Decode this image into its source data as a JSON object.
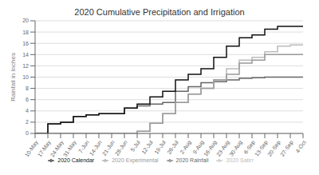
{
  "chart_data": {
    "type": "step",
    "title": "2020 Cumulative Precipitation and Irrigation",
    "ylabel": "Rainfall in Inches",
    "categories": [
      "10-May",
      "17-May",
      "24-May",
      "31-May",
      "7-Jun",
      "14-Jun",
      "21-Jun",
      "28-Jun",
      "5-Jul",
      "12-Jul",
      "19-Jul",
      "26-Jul",
      "2-Aug",
      "9-Aug",
      "16-Aug",
      "23-Aug",
      "30-Aug",
      "6-Sep",
      "13-Sep",
      "20-Sep",
      "27-Sep",
      "4-Oct"
    ],
    "series": [
      {
        "name": "2020 Rainfall",
        "color": "#666666",
        "values": [
          0,
          1.7,
          2.0,
          3.0,
          3.3,
          3.5,
          3.5,
          4.5,
          4.9,
          5.2,
          5.5,
          7.5,
          8.3,
          9.0,
          9.2,
          9.5,
          9.8,
          9.9,
          10.0,
          10.0,
          10.0,
          10.0
        ]
      },
      {
        "name": "2020 Satirr",
        "color": "#bbbbbb",
        "values": [
          0,
          0,
          0,
          0,
          0,
          0,
          0,
          0,
          0.4,
          1.8,
          3.5,
          5.5,
          7.0,
          8.0,
          9.5,
          11.5,
          13.0,
          13.5,
          14.5,
          15.5,
          15.7,
          15.7
        ]
      },
      {
        "name": "2020 Experimental",
        "color": "#999999",
        "values": [
          0,
          0,
          0,
          0,
          0,
          0,
          0,
          0,
          0.4,
          1.8,
          3.5,
          5.5,
          7.0,
          8.0,
          9.5,
          10.5,
          12.5,
          13.0,
          14.0,
          14.0,
          14.0,
          14.0
        ]
      },
      {
        "name": "2020 Calendar",
        "color": "#111111",
        "values": [
          0,
          1.7,
          2.0,
          3.0,
          3.3,
          3.5,
          3.5,
          4.5,
          5.2,
          6.5,
          7.5,
          9.5,
          10.5,
          11.5,
          13.5,
          15.5,
          17.0,
          17.5,
          18.5,
          19.0,
          19.0,
          19.0
        ]
      }
    ],
    "ylim": [
      0,
      20
    ],
    "yticks": [
      0,
      2,
      4,
      6,
      8,
      10,
      12,
      14,
      16,
      18,
      20
    ],
    "grid": true,
    "legend": "bottom"
  }
}
